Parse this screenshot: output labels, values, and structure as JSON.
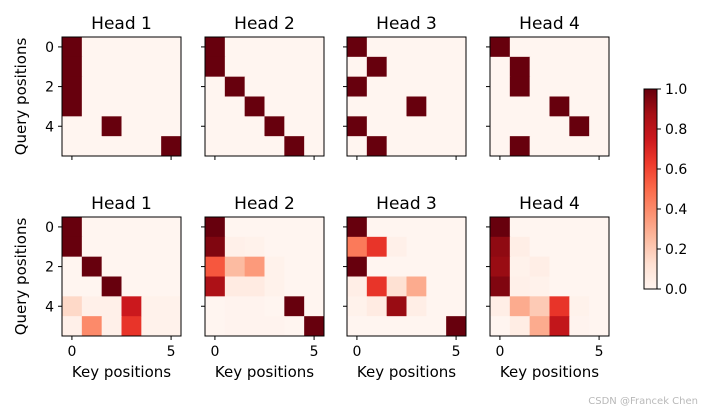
{
  "chart_data": {
    "type": "heatmap",
    "colormap": "Reds",
    "colorbar": {
      "min": 0.0,
      "max": 1.0,
      "ticks": [
        "0.0",
        "0.2",
        "0.4",
        "0.6",
        "0.8",
        "1.0"
      ]
    },
    "x_ticks": [
      "0",
      "5"
    ],
    "y_ticks": [
      "0",
      "2",
      "4"
    ],
    "xlabel": "Key positions",
    "ylabel": "Query positions",
    "panels": [
      {
        "title": "Head 1",
        "row": 0,
        "col": 0,
        "matrix": [
          [
            1,
            0,
            0,
            0,
            0,
            0
          ],
          [
            1,
            0,
            0,
            0,
            0,
            0
          ],
          [
            1,
            0,
            0,
            0,
            0,
            0
          ],
          [
            1,
            0,
            0,
            0,
            0,
            0
          ],
          [
            0,
            0,
            1,
            0,
            0,
            0
          ],
          [
            0,
            0,
            0,
            0,
            0,
            1
          ]
        ]
      },
      {
        "title": "Head 2",
        "row": 0,
        "col": 1,
        "matrix": [
          [
            1,
            0,
            0,
            0,
            0,
            0
          ],
          [
            1,
            0,
            0,
            0,
            0,
            0
          ],
          [
            0,
            1,
            0,
            0,
            0,
            0
          ],
          [
            0,
            0,
            1,
            0,
            0,
            0
          ],
          [
            0,
            0,
            0,
            1,
            0,
            0
          ],
          [
            0,
            0,
            0,
            0,
            1,
            0
          ]
        ]
      },
      {
        "title": "Head 3",
        "row": 0,
        "col": 2,
        "matrix": [
          [
            1,
            0,
            0,
            0,
            0,
            0
          ],
          [
            0,
            1,
            0,
            0,
            0,
            0
          ],
          [
            1,
            0,
            0,
            0,
            0,
            0
          ],
          [
            0,
            0,
            0,
            1,
            0,
            0
          ],
          [
            1,
            0,
            0,
            0,
            0,
            0
          ],
          [
            0,
            1,
            0,
            0,
            0,
            0
          ]
        ]
      },
      {
        "title": "Head 4",
        "row": 0,
        "col": 3,
        "matrix": [
          [
            1,
            0,
            0,
            0,
            0,
            0
          ],
          [
            0,
            1,
            0,
            0,
            0,
            0
          ],
          [
            0,
            1,
            0,
            0,
            0,
            0
          ],
          [
            0,
            0,
            0,
            1,
            0,
            0
          ],
          [
            0,
            0,
            0,
            0,
            1,
            0
          ],
          [
            0,
            1,
            0,
            0,
            0,
            0
          ]
        ]
      },
      {
        "title": "Head 1",
        "row": 1,
        "col": 0,
        "matrix": [
          [
            1,
            0,
            0,
            0,
            0,
            0
          ],
          [
            1,
            0,
            0,
            0,
            0,
            0
          ],
          [
            0,
            1,
            0,
            0,
            0,
            0
          ],
          [
            0,
            0,
            1,
            0,
            0,
            0
          ],
          [
            0.15,
            0.03,
            0.03,
            0.75,
            0.02,
            0.02
          ],
          [
            0.03,
            0.4,
            0.03,
            0.65,
            0.02,
            0.02
          ]
        ]
      },
      {
        "title": "Head 2",
        "row": 1,
        "col": 1,
        "matrix": [
          [
            1,
            0,
            0,
            0,
            0,
            0
          ],
          [
            0.95,
            0.03,
            0.02,
            0,
            0,
            0
          ],
          [
            0.55,
            0.25,
            0.35,
            0.02,
            0,
            0
          ],
          [
            0.85,
            0.06,
            0.06,
            0.02,
            0,
            0
          ],
          [
            0,
            0.01,
            0.01,
            0,
            1,
            0
          ],
          [
            0,
            0.01,
            0.01,
            0.01,
            0,
            1
          ]
        ]
      },
      {
        "title": "Head 3",
        "row": 1,
        "col": 2,
        "matrix": [
          [
            1,
            0,
            0,
            0,
            0,
            0
          ],
          [
            0.45,
            0.65,
            0.03,
            0,
            0,
            0
          ],
          [
            1,
            0,
            0,
            0,
            0,
            0
          ],
          [
            0.04,
            0.65,
            0.12,
            0.3,
            0,
            0
          ],
          [
            0.02,
            0.06,
            0.9,
            0.04,
            0,
            0
          ],
          [
            0,
            0,
            0,
            0,
            0,
            1
          ]
        ]
      },
      {
        "title": "Head 4",
        "row": 1,
        "col": 3,
        "matrix": [
          [
            1,
            0,
            0,
            0,
            0,
            0
          ],
          [
            0.92,
            0.04,
            0,
            0,
            0,
            0
          ],
          [
            0.9,
            0.02,
            0.04,
            0,
            0,
            0
          ],
          [
            0.95,
            0.03,
            0.02,
            0,
            0,
            0
          ],
          [
            0.04,
            0.3,
            0.2,
            0.65,
            0.02,
            0
          ],
          [
            0,
            0.05,
            0.3,
            0.78,
            0.01,
            0
          ]
        ]
      }
    ]
  },
  "watermark": "CSDN @Francek Chen"
}
